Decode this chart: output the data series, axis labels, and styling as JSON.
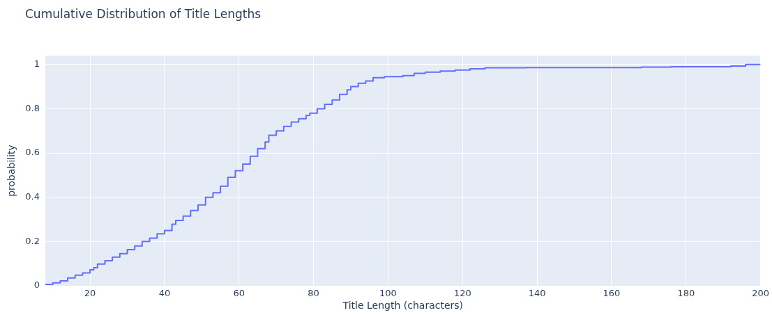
{
  "chart_data": {
    "type": "step",
    "title": "Cumulative Distribution of Title Lengths",
    "xlabel": "Title Length (characters)",
    "ylabel": "probability",
    "xlim": [
      8,
      200
    ],
    "xticks": [
      20,
      40,
      60,
      80,
      100,
      120,
      140,
      160,
      180,
      200
    ],
    "ylim": [
      0,
      1.04
    ],
    "yticks": [
      0,
      0.2,
      0.4,
      0.6,
      0.8,
      1
    ],
    "grid": true,
    "legend": false,
    "series": [
      {
        "color": "#636efa",
        "x": [
          8,
          10,
          12,
          14,
          16,
          18,
          20,
          21,
          22,
          24,
          26,
          28,
          30,
          32,
          34,
          36,
          38,
          40,
          42,
          43,
          45,
          47,
          49,
          51,
          53,
          55,
          57,
          59,
          61,
          63,
          65,
          67,
          68,
          70,
          72,
          74,
          76,
          78,
          79,
          81,
          83,
          85,
          87,
          89,
          90,
          92,
          94,
          96,
          99,
          104,
          107,
          110,
          114,
          118,
          122,
          126,
          137,
          168,
          176,
          192,
          196,
          200
        ],
        "values": [
          0.003,
          0.006,
          0.013,
          0.022,
          0.035,
          0.048,
          0.058,
          0.072,
          0.082,
          0.098,
          0.113,
          0.13,
          0.145,
          0.163,
          0.18,
          0.2,
          0.215,
          0.235,
          0.25,
          0.278,
          0.295,
          0.315,
          0.34,
          0.365,
          0.4,
          0.42,
          0.45,
          0.49,
          0.52,
          0.55,
          0.585,
          0.62,
          0.65,
          0.68,
          0.7,
          0.72,
          0.74,
          0.755,
          0.77,
          0.78,
          0.8,
          0.82,
          0.84,
          0.865,
          0.885,
          0.9,
          0.915,
          0.925,
          0.94,
          0.945,
          0.95,
          0.96,
          0.965,
          0.97,
          0.975,
          0.98,
          0.985,
          0.986,
          0.988,
          0.99,
          0.993,
          1
        ]
      }
    ]
  }
}
